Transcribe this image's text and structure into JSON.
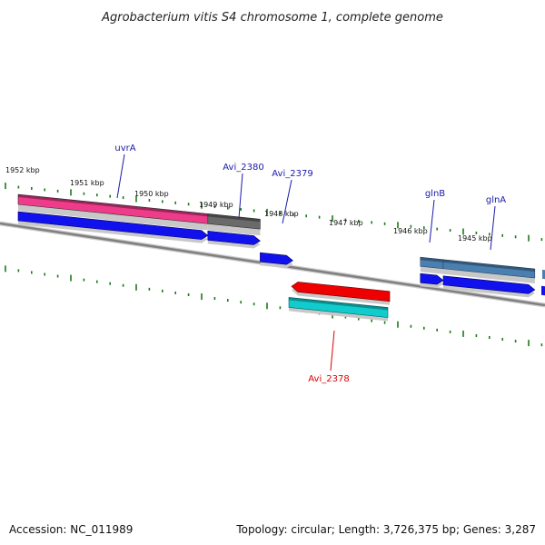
{
  "title": "Agrobacterium vitis S4 chromosome 1, complete genome",
  "footer": {
    "accession": "Accession: NC_011989",
    "stats": "Topology: circular; Length: 3,726,375 bp; Genes: 3,287"
  },
  "colors": {
    "tick_green": "#1a7a1a",
    "backbone_gray": "#808080",
    "forward_label": "#1a1aaa",
    "reverse_label": "#dd0000",
    "uvrA": "#ee3b8a",
    "cds": "#1111ee",
    "Avi_2380": "#6a6a6a",
    "glnB": "#4a7fb0",
    "glnA": "#4a7fb0",
    "Avi_2378": "#ee0000",
    "Avi_2378_cds": "#11cccc"
  },
  "chart_data": {
    "type": "genome-map",
    "x_unit": "kbp",
    "tick_labels": [
      "1952 kbp",
      "1951 kbp",
      "1950 kbp",
      "1949 kbp",
      "1948 kbp",
      "1947 kbp",
      "1946 kbp",
      "1945 kbp"
    ],
    "genes": [
      {
        "name": "uvrA",
        "strand": "forward",
        "start_kbp": 1949.2,
        "end_kbp": 1952.1
      },
      {
        "name": "Avi_2380",
        "strand": "forward",
        "start_kbp": 1948.4,
        "end_kbp": 1949.2
      },
      {
        "name": "Avi_2379",
        "strand": "forward",
        "start_kbp": 1947.9,
        "end_kbp": 1948.4
      },
      {
        "name": "Avi_2378",
        "strand": "reverse",
        "start_kbp": 1945.9,
        "end_kbp": 1947.4
      },
      {
        "name": "glnB",
        "strand": "forward",
        "start_kbp": 1945.6,
        "end_kbp": 1945.95
      },
      {
        "name": "glnA",
        "strand": "forward",
        "start_kbp": 1944.2,
        "end_kbp": 1945.6
      }
    ]
  }
}
